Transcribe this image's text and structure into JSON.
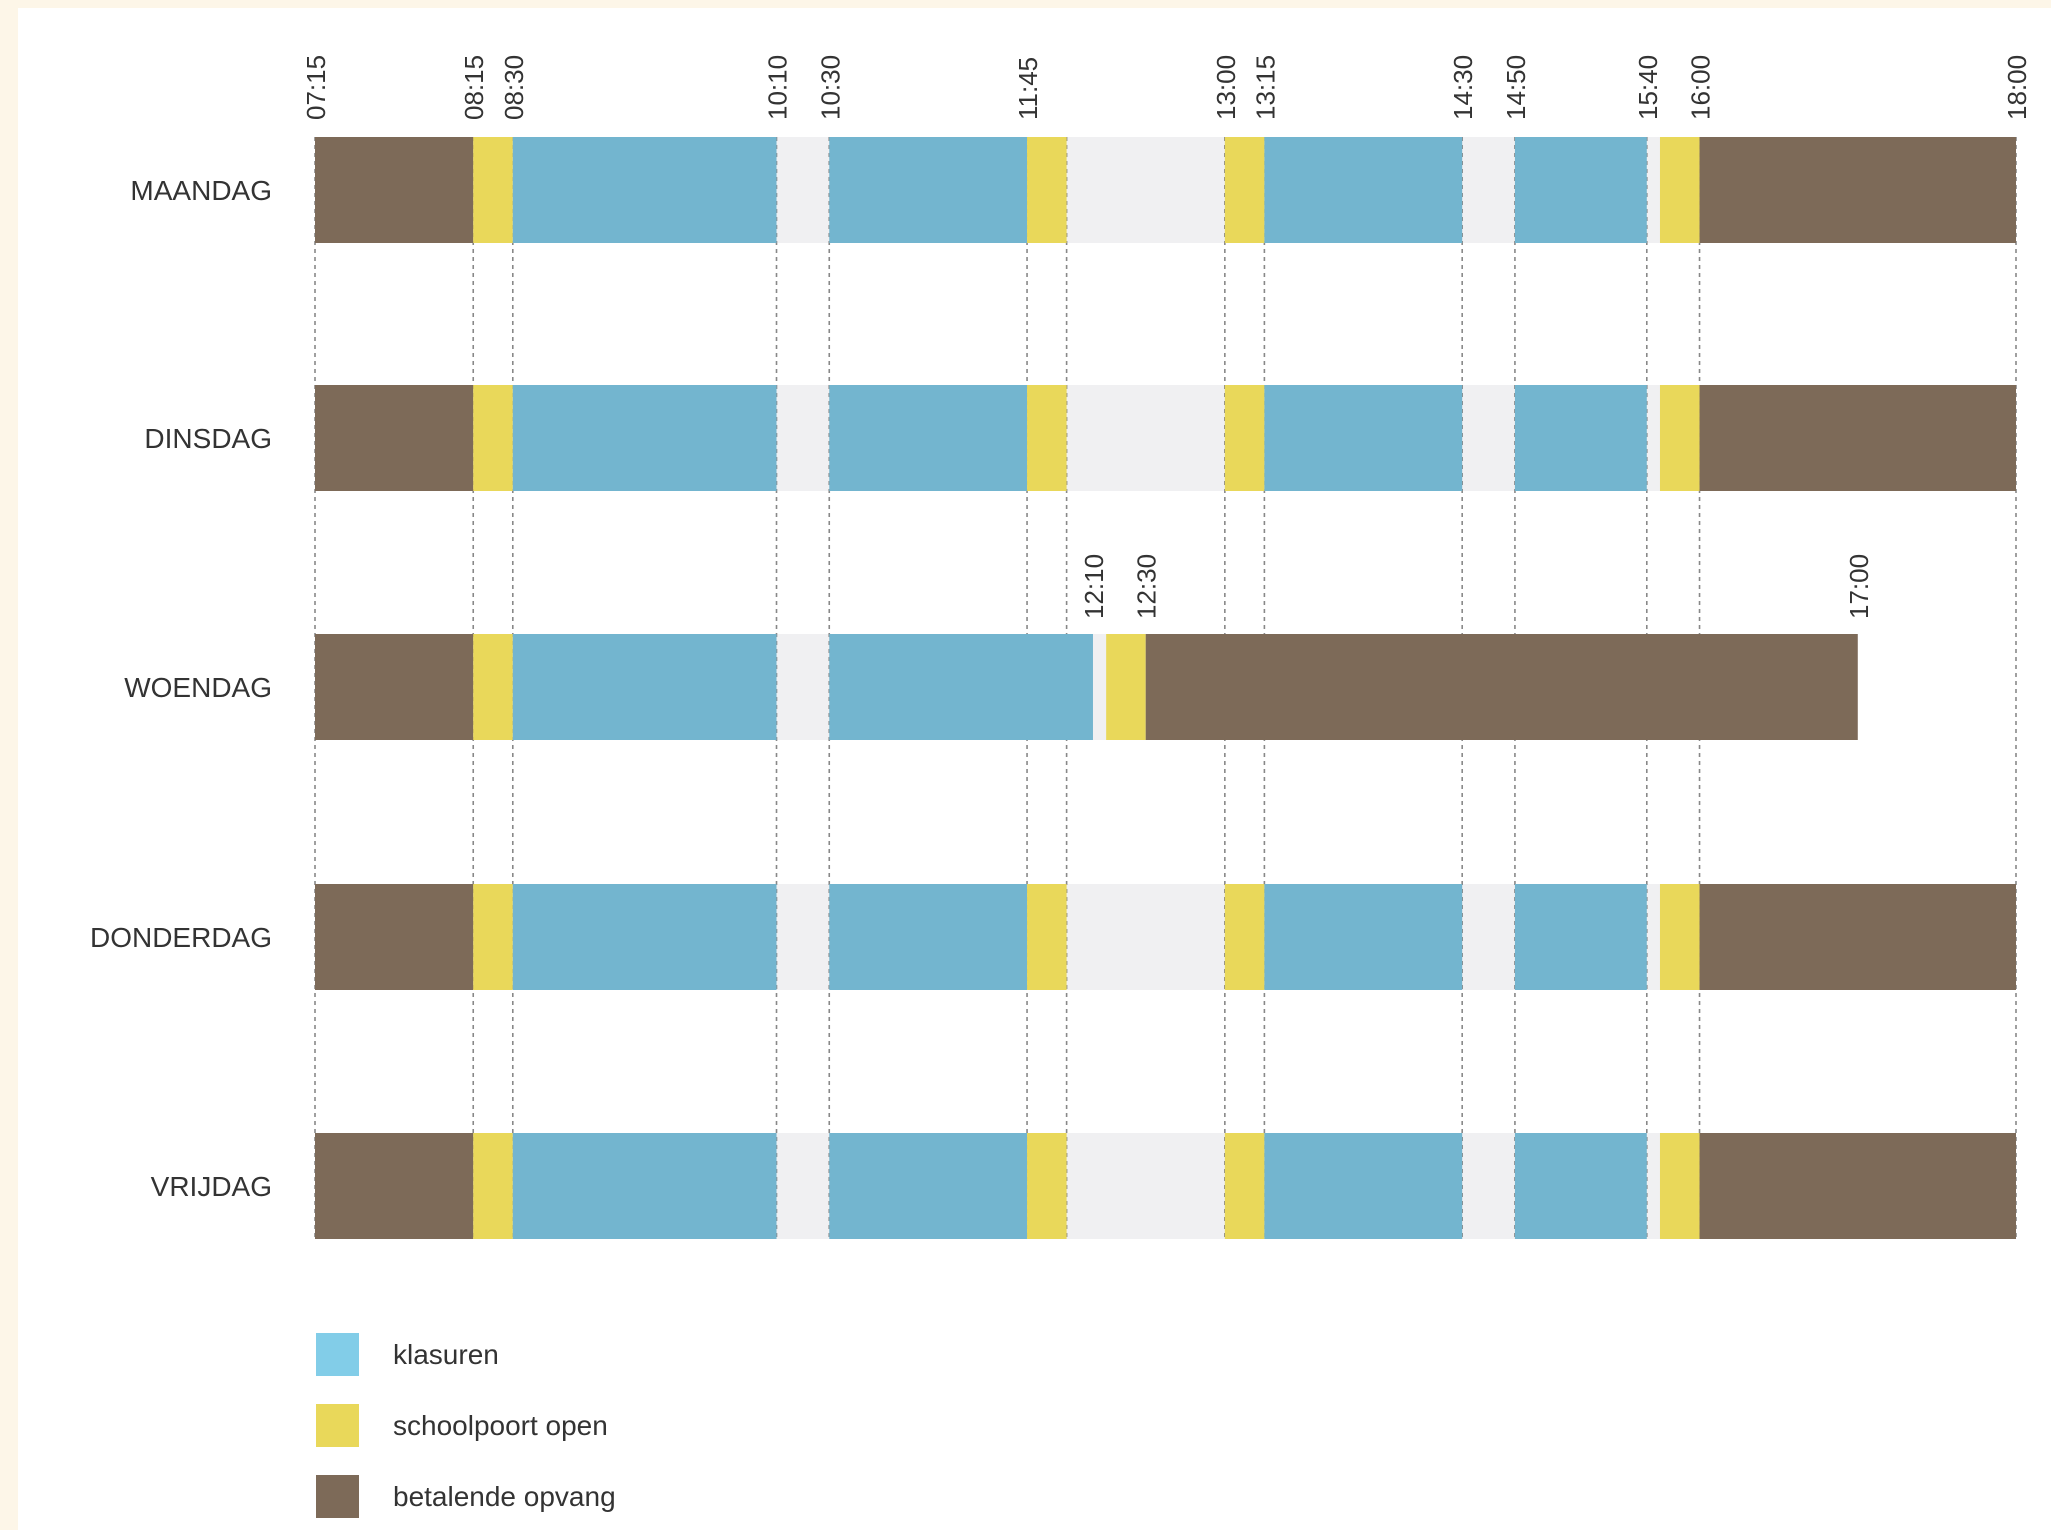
{
  "chart_data": {
    "type": "timeline",
    "title": "",
    "time_range": [
      "07:15",
      "18:00"
    ],
    "top_time_labels": [
      "07:15",
      "08:15",
      "08:30",
      "10:10",
      "10:30",
      "11:45",
      "13:00",
      "13:15",
      "14:30",
      "14:50",
      "15:40",
      "16:00",
      "18:00"
    ],
    "wednesday_time_labels": [
      "12:10",
      "12:30",
      "17:00"
    ],
    "gridline_times": [
      "07:15",
      "08:15",
      "08:30",
      "10:10",
      "10:30",
      "11:45",
      "12:00",
      "13:00",
      "13:15",
      "14:30",
      "14:50",
      "15:40",
      "16:00",
      "18:00"
    ],
    "days": [
      {
        "label": "MAANDAG",
        "segments": [
          {
            "start": "07:15",
            "end": "08:15",
            "type": "betalende opvang"
          },
          {
            "start": "08:15",
            "end": "08:30",
            "type": "schoolpoort open"
          },
          {
            "start": "08:30",
            "end": "10:10",
            "type": "klasuren"
          },
          {
            "start": "10:10",
            "end": "10:30",
            "type": "pauze"
          },
          {
            "start": "10:30",
            "end": "11:45",
            "type": "klasuren"
          },
          {
            "start": "11:45",
            "end": "12:00",
            "type": "schoolpoort open"
          },
          {
            "start": "12:00",
            "end": "13:00",
            "type": "pauze"
          },
          {
            "start": "13:00",
            "end": "13:15",
            "type": "schoolpoort open"
          },
          {
            "start": "13:15",
            "end": "14:30",
            "type": "klasuren"
          },
          {
            "start": "14:30",
            "end": "14:50",
            "type": "pauze"
          },
          {
            "start": "14:50",
            "end": "15:40",
            "type": "klasuren"
          },
          {
            "start": "15:40",
            "end": "15:45",
            "type": "pauze"
          },
          {
            "start": "15:45",
            "end": "16:00",
            "type": "schoolpoort open"
          },
          {
            "start": "16:00",
            "end": "18:00",
            "type": "betalende opvang"
          }
        ]
      },
      {
        "label": "DINSDAG",
        "segments": [
          {
            "start": "07:15",
            "end": "08:15",
            "type": "betalende opvang"
          },
          {
            "start": "08:15",
            "end": "08:30",
            "type": "schoolpoort open"
          },
          {
            "start": "08:30",
            "end": "10:10",
            "type": "klasuren"
          },
          {
            "start": "10:10",
            "end": "10:30",
            "type": "pauze"
          },
          {
            "start": "10:30",
            "end": "11:45",
            "type": "klasuren"
          },
          {
            "start": "11:45",
            "end": "12:00",
            "type": "schoolpoort open"
          },
          {
            "start": "12:00",
            "end": "13:00",
            "type": "pauze"
          },
          {
            "start": "13:00",
            "end": "13:15",
            "type": "schoolpoort open"
          },
          {
            "start": "13:15",
            "end": "14:30",
            "type": "klasuren"
          },
          {
            "start": "14:30",
            "end": "14:50",
            "type": "pauze"
          },
          {
            "start": "14:50",
            "end": "15:40",
            "type": "klasuren"
          },
          {
            "start": "15:40",
            "end": "15:45",
            "type": "pauze"
          },
          {
            "start": "15:45",
            "end": "16:00",
            "type": "schoolpoort open"
          },
          {
            "start": "16:00",
            "end": "18:00",
            "type": "betalende opvang"
          }
        ]
      },
      {
        "label": "WOENDAG",
        "segments": [
          {
            "start": "07:15",
            "end": "08:15",
            "type": "betalende opvang"
          },
          {
            "start": "08:15",
            "end": "08:30",
            "type": "schoolpoort open"
          },
          {
            "start": "08:30",
            "end": "10:10",
            "type": "klasuren"
          },
          {
            "start": "10:10",
            "end": "10:30",
            "type": "pauze"
          },
          {
            "start": "10:30",
            "end": "12:10",
            "type": "klasuren"
          },
          {
            "start": "12:15",
            "end": "12:30",
            "type": "schoolpoort open"
          },
          {
            "start": "12:30",
            "end": "17:00",
            "type": "betalende opvang"
          }
        ]
      },
      {
        "label": "DONDERDAG",
        "segments": [
          {
            "start": "07:15",
            "end": "08:15",
            "type": "betalende opvang"
          },
          {
            "start": "08:15",
            "end": "08:30",
            "type": "schoolpoort open"
          },
          {
            "start": "08:30",
            "end": "10:10",
            "type": "klasuren"
          },
          {
            "start": "10:10",
            "end": "10:30",
            "type": "pauze"
          },
          {
            "start": "10:30",
            "end": "11:45",
            "type": "klasuren"
          },
          {
            "start": "11:45",
            "end": "12:00",
            "type": "schoolpoort open"
          },
          {
            "start": "12:00",
            "end": "13:00",
            "type": "pauze"
          },
          {
            "start": "13:00",
            "end": "13:15",
            "type": "schoolpoort open"
          },
          {
            "start": "13:15",
            "end": "14:30",
            "type": "klasuren"
          },
          {
            "start": "14:30",
            "end": "14:50",
            "type": "pauze"
          },
          {
            "start": "14:50",
            "end": "15:40",
            "type": "klasuren"
          },
          {
            "start": "15:40",
            "end": "15:45",
            "type": "pauze"
          },
          {
            "start": "15:45",
            "end": "16:00",
            "type": "schoolpoort open"
          },
          {
            "start": "16:00",
            "end": "18:00",
            "type": "betalende opvang"
          }
        ]
      },
      {
        "label": "VRIJDAG",
        "segments": [
          {
            "start": "07:15",
            "end": "08:15",
            "type": "betalende opvang"
          },
          {
            "start": "08:15",
            "end": "08:30",
            "type": "schoolpoort open"
          },
          {
            "start": "08:30",
            "end": "10:10",
            "type": "klasuren"
          },
          {
            "start": "10:10",
            "end": "10:30",
            "type": "pauze"
          },
          {
            "start": "10:30",
            "end": "11:45",
            "type": "klasuren"
          },
          {
            "start": "11:45",
            "end": "12:00",
            "type": "schoolpoort open"
          },
          {
            "start": "12:00",
            "end": "13:00",
            "type": "pauze"
          },
          {
            "start": "13:00",
            "end": "13:15",
            "type": "schoolpoort open"
          },
          {
            "start": "13:15",
            "end": "14:30",
            "type": "klasuren"
          },
          {
            "start": "14:30",
            "end": "14:50",
            "type": "pauze"
          },
          {
            "start": "14:50",
            "end": "15:40",
            "type": "klasuren"
          },
          {
            "start": "15:40",
            "end": "15:45",
            "type": "pauze"
          },
          {
            "start": "15:45",
            "end": "16:00",
            "type": "schoolpoort open"
          },
          {
            "start": "16:00",
            "end": "18:00",
            "type": "betalende opvang"
          }
        ]
      }
    ],
    "legend": [
      {
        "label": "klasuren",
        "color": "#82cde8"
      },
      {
        "label": "schoolpoort open",
        "color": "#e9d85a"
      },
      {
        "label": "betalende opvang",
        "color": "#7d6a58"
      }
    ],
    "legend_position": "bottom-left",
    "colors": {
      "klasuren": "#73b5cf",
      "schoolpoort open": "#e9d85a",
      "betalende opvang": "#7d6a58",
      "pauze": "#f0f0f2",
      "gridline": "#888888"
    },
    "grid": true
  }
}
